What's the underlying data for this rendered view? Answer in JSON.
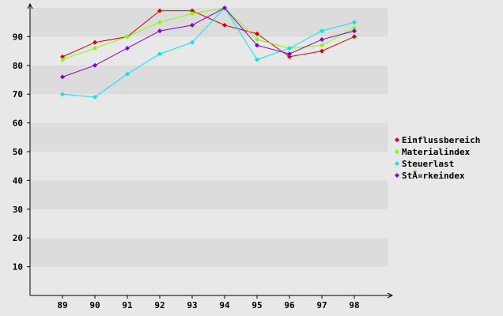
{
  "chart_data": {
    "type": "line",
    "categories": [
      "89",
      "90",
      "91",
      "92",
      "93",
      "94",
      "95",
      "96",
      "97",
      "98"
    ],
    "ylim": [
      0,
      100
    ],
    "yticks": [
      10,
      20,
      30,
      40,
      50,
      60,
      70,
      80,
      90
    ],
    "grid": "horizontal bands",
    "legend_position": "right",
    "series": [
      {
        "name": "Einflussbereich",
        "color": "#e00000",
        "values": [
          83,
          88,
          90,
          99,
          99,
          94,
          91,
          83,
          85,
          90
        ]
      },
      {
        "name": "Materialindex",
        "color": "#80ff00",
        "values": [
          82,
          86,
          90,
          95,
          98,
          100,
          89,
          86,
          87,
          93
        ]
      },
      {
        "name": "Steuerlast",
        "color": "#00e8f0",
        "values": [
          70,
          69,
          77,
          84,
          88,
          100,
          82,
          86,
          92,
          95
        ]
      },
      {
        "name": "StÃ¤rkeindex",
        "color": "#8000e0",
        "values": [
          76,
          80,
          86,
          92,
          94,
          100,
          87,
          84,
          89,
          92
        ]
      }
    ]
  }
}
